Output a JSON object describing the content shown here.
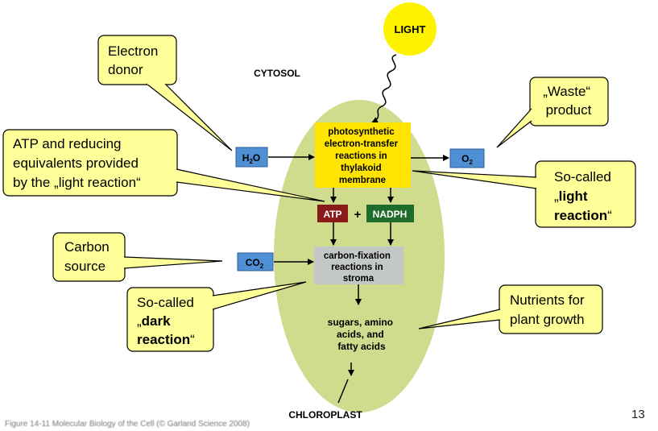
{
  "colors": {
    "chloroplast": "#cfdb8d",
    "light_sun": "#fff200",
    "callout_fill": "#ffff99",
    "callout_stroke": "#000000",
    "process_box": "#ffe400",
    "stroma_box": "#c3c7c6",
    "molecule_box": "#4f8fd4",
    "atp_box": "#8b1a1a",
    "nadph_box": "#1f6b2c"
  },
  "diagram": {
    "light_label": "LIGHT",
    "cytosol_label": "CYTOSOL",
    "chloroplast_label": "CHLOROPLAST",
    "h2o_label": {
      "main": "H",
      "sub": "2",
      "tail": "O"
    },
    "o2_label": {
      "main": "O",
      "sub": "2"
    },
    "co2_label": {
      "main": "CO",
      "sub": "2"
    },
    "atp_label": "ATP",
    "plus_label": "+",
    "nadph_label": "NADPH",
    "light_process_lines": [
      "photosynthetic",
      "electron-transfer",
      "reactions in",
      "thylakoid",
      "membrane"
    ],
    "dark_process_lines": [
      "carbon-fixation",
      "reactions in",
      "stroma"
    ],
    "products_lines": [
      "sugars, amino",
      "acids, and",
      "fatty acids"
    ]
  },
  "callouts": {
    "electron_donor": [
      "Electron",
      "donor"
    ],
    "waste_product": [
      "„Waste“",
      "product"
    ],
    "atp_reducing": [
      "ATP and reducing",
      "equivalents provided",
      "by the „light reaction“"
    ],
    "light_reaction": {
      "line1": "So-called",
      "open_quote": "„",
      "bold": "light",
      "bold2": "reaction",
      "close_quote": "“"
    },
    "carbon_source": [
      "Carbon",
      "source"
    ],
    "dark_reaction": {
      "line1": "So-called",
      "open_quote": "„",
      "bold": "dark",
      "bold2": "reaction",
      "close_quote": "“"
    },
    "nutrients": [
      "Nutrients for",
      "plant growth"
    ]
  },
  "page_number": "13",
  "caption": "Figure 14-11 Molecular Biology of the Cell (© Garland Science 2008)"
}
